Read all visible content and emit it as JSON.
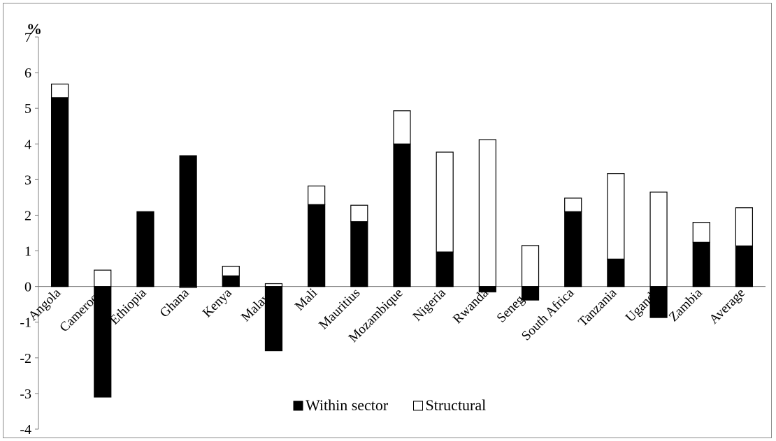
{
  "chart_data": {
    "type": "bar",
    "stacked": true,
    "unit_label": "%",
    "categories": [
      "Angola",
      "Cameroon",
      "Ethiopia",
      "Ghana",
      "Kenya",
      "Malawi",
      "Mali",
      "Mauritius",
      "Mozambique",
      "Nigeria",
      "Rwanda",
      "Senegal",
      "South Africa",
      "Tanzania",
      "Uganda",
      "Zambia",
      "Average"
    ],
    "series": [
      {
        "name": "Within sector",
        "color": "#000000",
        "values": [
          5.3,
          -3.1,
          2.1,
          3.67,
          0.3,
          -1.8,
          2.3,
          1.82,
          4.0,
          0.97,
          -0.15,
          -0.38,
          2.1,
          0.77,
          -0.87,
          1.24,
          1.14
        ]
      },
      {
        "name": "Structural",
        "color": "#ffffff",
        "values": [
          0.38,
          0.46,
          0.0,
          -0.03,
          0.27,
          0.08,
          0.52,
          0.46,
          0.93,
          2.8,
          4.12,
          1.15,
          0.38,
          2.4,
          2.65,
          0.56,
          1.07
        ]
      }
    ],
    "ylim": [
      -4,
      7
    ],
    "yticks": [
      -4,
      -3,
      -2,
      -1,
      0,
      1,
      2,
      3,
      4,
      5,
      6,
      7
    ],
    "grid": false,
    "legend": "bottom"
  }
}
